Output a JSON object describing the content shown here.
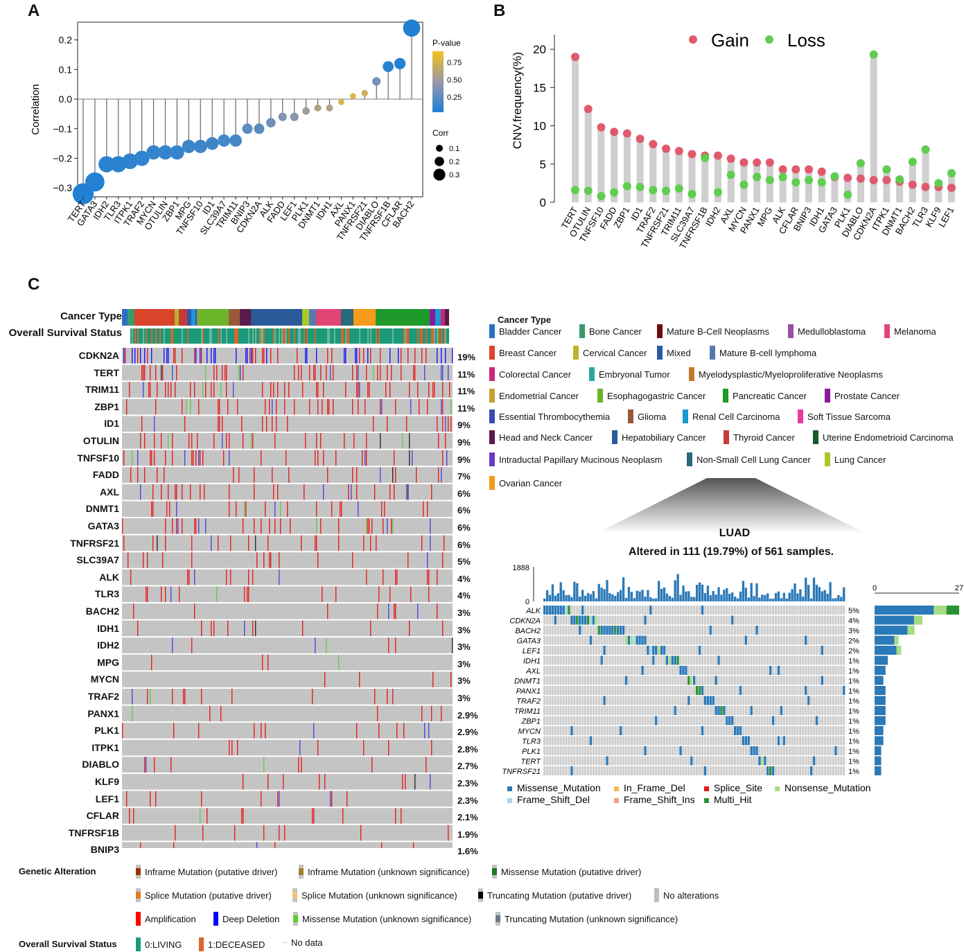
{
  "panels": {
    "a": "A",
    "b": "B",
    "c": "C"
  },
  "chart_data": [
    {
      "type": "scatter",
      "subtype": "lollipop",
      "title": "",
      "ylabel": "Correlation",
      "ylim": [
        -0.33,
        0.26
      ],
      "yticks": [
        -0.3,
        -0.2,
        -0.1,
        0.0,
        0.1,
        0.2
      ],
      "ytick_labels": [
        "−0.3",
        "−0.2",
        "−0.1",
        "0.0",
        "0.1",
        "0.2"
      ],
      "categories": [
        "TERT",
        "GATA3",
        "IDH2",
        "TLR3",
        "ITPK1",
        "TRAF2",
        "MYCN",
        "OTULIN",
        "ZBP1",
        "MPG",
        "TNFSF10",
        "ID1",
        "SLC39A7",
        "TRIM11",
        "BNIP3",
        "CDKN2A",
        "ALK",
        "FADD",
        "LEF1",
        "PLK1",
        "DNMT1",
        "IDH1",
        "AXL",
        "PANX1",
        "TNFRSF21",
        "DIABLO",
        "TNFRSF1B",
        "CFLAR",
        "BACH2"
      ],
      "values": [
        -0.32,
        -0.28,
        -0.22,
        -0.22,
        -0.21,
        -0.2,
        -0.18,
        -0.18,
        -0.18,
        -0.16,
        -0.16,
        -0.15,
        -0.14,
        -0.14,
        -0.1,
        -0.1,
        -0.08,
        -0.06,
        -0.06,
        -0.04,
        -0.03,
        -0.03,
        -0.01,
        0.01,
        0.02,
        0.06,
        0.11,
        0.12,
        0.24
      ],
      "pvalues": [
        0.01,
        0.02,
        0.05,
        0.05,
        0.06,
        0.07,
        0.09,
        0.09,
        0.09,
        0.12,
        0.12,
        0.13,
        0.15,
        0.15,
        0.25,
        0.25,
        0.32,
        0.42,
        0.42,
        0.55,
        0.62,
        0.62,
        0.85,
        0.85,
        0.78,
        0.35,
        0.04,
        0.03,
        0.01
      ],
      "legend": {
        "pvalue_title": "P-value",
        "pvalue_ticks": [
          "0.75",
          "0.50",
          "0.25"
        ],
        "corr_title": "Corr",
        "corr_ticks": [
          "0.1",
          "0.2",
          "0.3"
        ]
      }
    },
    {
      "type": "scatter",
      "subtype": "dumbbell",
      "ylabel": "CNV.frequency(%)",
      "ylim": [
        0,
        21
      ],
      "yticks": [
        0,
        5,
        10,
        15,
        20
      ],
      "legend": [
        {
          "name": "Gain",
          "color": "#e05a6e"
        },
        {
          "name": "Loss",
          "color": "#5fcd50"
        }
      ],
      "categories": [
        "TERT",
        "OTULIN",
        "TNFSF10",
        "FADD",
        "ZBP1",
        "ID1",
        "TRAF2",
        "TNFRSF21",
        "TRIM11",
        "SLC39A7",
        "TNFRSF1B",
        "IDH2",
        "AXL",
        "MYCN",
        "PANX1",
        "MPG",
        "ALK",
        "CFLAR",
        "BNIP3",
        "IDH1",
        "GATA3",
        "PLK1",
        "DIABLO",
        "CDKN2A",
        "ITPK1",
        "DNMT1",
        "BACH2",
        "TLR3",
        "KLF9",
        "LEF1"
      ],
      "series": [
        {
          "name": "Gain",
          "values": [
            19.0,
            12.2,
            9.8,
            9.2,
            9.0,
            8.3,
            7.6,
            7.0,
            6.7,
            6.3,
            6.1,
            6.1,
            5.7,
            5.2,
            5.2,
            5.2,
            4.3,
            4.3,
            4.3,
            4.0,
            3.3,
            3.2,
            3.1,
            2.9,
            2.9,
            2.7,
            2.3,
            2.0,
            2.0,
            1.9
          ]
        },
        {
          "name": "Loss",
          "values": [
            1.6,
            1.5,
            0.8,
            1.3,
            2.1,
            2.0,
            1.6,
            1.5,
            1.8,
            1.1,
            5.8,
            1.3,
            3.6,
            2.3,
            3.3,
            2.9,
            3.3,
            2.6,
            2.9,
            2.6,
            3.4,
            1.0,
            5.1,
            19.3,
            4.3,
            3.0,
            5.3,
            6.9,
            2.5,
            3.8
          ]
        }
      ]
    },
    {
      "type": "heatmap",
      "subtype": "oncoprint",
      "row_labels": [
        "CDKN2A",
        "TERT",
        "TRIM11",
        "ZBP1",
        "ID1",
        "OTULIN",
        "TNFSF10",
        "FADD",
        "AXL",
        "DNMT1",
        "GATA3",
        "TNFRSF21",
        "SLC39A7",
        "ALK",
        "TLR3",
        "BACH2",
        "IDH1",
        "IDH2",
        "MPG",
        "MYCN",
        "TRAF2",
        "PANX1",
        "PLK1",
        "ITPK1",
        "DIABLO",
        "KLF9",
        "LEF1",
        "CFLAR",
        "TNFRSF1B",
        "BNIP3"
      ],
      "row_percents": [
        "19%",
        "11%",
        "11%",
        "11%",
        "9%",
        "9%",
        "9%",
        "7%",
        "6%",
        "6%",
        "6%",
        "6%",
        "5%",
        "4%",
        "4%",
        "3%",
        "3%",
        "3%",
        "3%",
        "3%",
        "3%",
        "2.9%",
        "2.9%",
        "2.8%",
        "2.7%",
        "2.3%",
        "2.3%",
        "2.1%",
        "1.9%",
        "1.6%"
      ],
      "track_labels": [
        "Cancer Type",
        "Overall Survival Status"
      ]
    },
    {
      "type": "heatmap",
      "subtype": "oncoplot",
      "title": "LUAD",
      "subtitle": "Altered in 111 (19.79%) of 561 samples.",
      "tmb_ticks": [
        "1888",
        "0"
      ],
      "side_ticks": [
        "0",
        "27"
      ],
      "row_labels": [
        "ALK",
        "CDKN2A",
        "BACH2",
        "GATA3",
        "LEF1",
        "IDH1",
        "AXL",
        "DNMT1",
        "PANX1",
        "TRAF2",
        "TRIM11",
        "ZBP1",
        "MYCN",
        "TLR3",
        "PLK1",
        "TERT",
        "TNFRSF21"
      ],
      "row_percents": [
        "5%",
        "4%",
        "3%",
        "2%",
        "2%",
        "1%",
        "1%",
        "1%",
        "1%",
        "1%",
        "1%",
        "1%",
        "1%",
        "1%",
        "1%",
        "1%",
        "1%"
      ],
      "side_values": [
        27,
        18,
        15,
        9,
        10,
        6,
        5,
        4,
        5,
        5,
        5,
        5,
        4,
        4,
        3,
        3,
        3
      ],
      "legend": [
        {
          "name": "Missense_Mutation",
          "color": "#2a79b8"
        },
        {
          "name": "In_Frame_Del",
          "color": "#f5b750"
        },
        {
          "name": "Splice_Site",
          "color": "#e01a1c"
        },
        {
          "name": "Nonsense_Mutation",
          "color": "#a6dc86"
        },
        {
          "name": "Frame_Shift_Del",
          "color": "#a9d2e6"
        },
        {
          "name": "Frame_Shift_Ins",
          "color": "#f59a8b"
        },
        {
          "name": "Multi_Hit",
          "color": "#2a9433"
        }
      ]
    }
  ],
  "cancer_type_legend": {
    "title": "Cancer Type",
    "items": [
      {
        "name": "Bladder Cancer",
        "color": "#2b6fc4"
      },
      {
        "name": "Bone Cancer",
        "color": "#3a9a6c"
      },
      {
        "name": "Mature B-Cell Neoplasms",
        "color": "#6b0e14"
      },
      {
        "name": "Medulloblastoma",
        "color": "#9b4ca8"
      },
      {
        "name": "Melanoma",
        "color": "#e04575"
      },
      {
        "name": "Breast Cancer",
        "color": "#d9442a"
      },
      {
        "name": "Cervical Cancer",
        "color": "#b8b52a"
      },
      {
        "name": "Mixed",
        "color": "#2a5aa8"
      },
      {
        "name": "Mature B-cell lymphoma",
        "color": "#5a78b0"
      },
      {
        "name": "Colorectal Cancer",
        "color": "#c8287a"
      },
      {
        "name": "Embryonal Tumor",
        "color": "#2aa8a0"
      },
      {
        "name": "Myelodysplastic/Myeloproliferative Neoplasms",
        "color": "#c07a2a"
      },
      {
        "name": "Endometrial Cancer",
        "color": "#c8a030"
      },
      {
        "name": "Esophagogastric Cancer",
        "color": "#6cb42a"
      },
      {
        "name": "Pancreatic Cancer",
        "color": "#1e9a2a"
      },
      {
        "name": "Prostate Cancer",
        "color": "#8a1a9a"
      },
      {
        "name": "Essential Thrombocythemia",
        "color": "#3a4ab0"
      },
      {
        "name": "Glioma",
        "color": "#9a5a3a"
      },
      {
        "name": "Renal Cell Carcinoma",
        "color": "#1a9ad0"
      },
      {
        "name": "Soft Tissue Sarcoma",
        "color": "#e83aa0"
      },
      {
        "name": "Head and Neck Cancer",
        "color": "#5a1a4a"
      },
      {
        "name": "Hepatobiliary Cancer",
        "color": "#2a5a9a"
      },
      {
        "name": "Thyroid Cancer",
        "color": "#c83a3a"
      },
      {
        "name": "Uterine Endometrioid Carcinoma",
        "color": "#1a5a2a"
      },
      {
        "name": "Intraductal Papillary Mucinous Neoplasm",
        "color": "#6a3ac8"
      },
      {
        "name": "Non-Small Cell Lung Cancer",
        "color": "#2a6a7a"
      },
      {
        "name": "Lung Cancer",
        "color": "#a8c82a"
      },
      {
        "name": "Ovarian Cancer",
        "color": "#f59a1a"
      }
    ]
  },
  "genetic_alteration_legend": {
    "title": "Genetic Alteration",
    "items": [
      {
        "name": "Inframe Mutation (putative driver)",
        "color": "#993404"
      },
      {
        "name": "Inframe Mutation (unknown significance)",
        "color": "#a68028"
      },
      {
        "name": "Missense Mutation (putative driver)",
        "color": "#1a7a1a"
      },
      {
        "name": "Splice Mutation (putative driver)",
        "color": "#e07a20"
      },
      {
        "name": "Splice Mutation (unknown significance)",
        "color": "#f5c080"
      },
      {
        "name": "Truncating Mutation (putative driver)",
        "color": "#000000"
      },
      {
        "name": "No alterations",
        "color": "#bdbdbd"
      },
      {
        "name": "Amplification",
        "color": "#ff0000"
      },
      {
        "name": "Deep Deletion",
        "color": "#0000ff"
      },
      {
        "name": "Missense Mutation (unknown significance)",
        "color": "#5ad02a"
      },
      {
        "name": "Truncating Mutation (unknown significance)",
        "color": "#6a7a8a"
      }
    ]
  },
  "survival_legend": {
    "title": "Overall Survival Status",
    "items": [
      {
        "name": "0:LIVING",
        "color": "#1a9a7a"
      },
      {
        "name": "1:DECEASED",
        "color": "#d9662a"
      },
      {
        "name": "No data",
        "color": "#cccccc"
      }
    ]
  }
}
